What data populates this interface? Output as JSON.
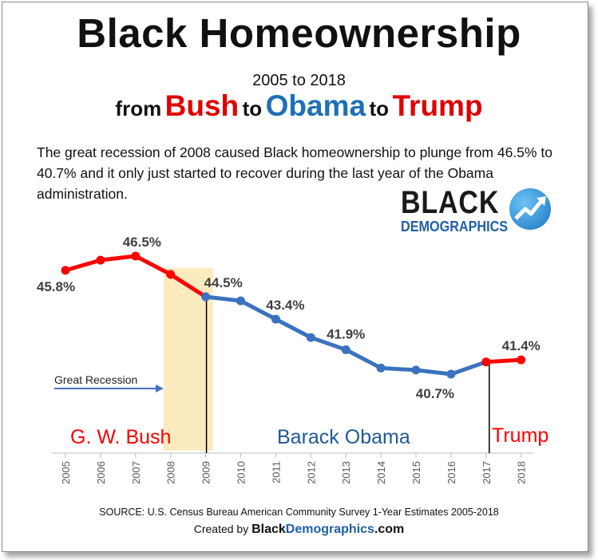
{
  "header": {
    "title": "Black Homeownership",
    "years": "2005 to 2018",
    "from": "from",
    "bush": "Bush",
    "to1": "to",
    "obama": "Obama",
    "to2": "to",
    "trump": "Trump"
  },
  "description": "The great recession of 2008 caused Black homeownership to plunge from 46.5% to 40.7% and it only just started to recover during the last year of the Obama administration.",
  "logo": {
    "line1": "BLACK",
    "line2": "DEMOGRAPHICS",
    "icon": "rising-arrow-icon"
  },
  "footer": {
    "source": "SOURCE: U.S. Census Bureau American Community  Survey 1-Year Estimates 2005-2018",
    "created_prefix": "Created by ",
    "site_a": "Black",
    "site_b": "Demographics",
    "site_c": ".com"
  },
  "colors": {
    "bush": "#ff0000",
    "obama": "#3a72c0",
    "trump": "#ff0000",
    "recession": "#fdebc0",
    "annotation_arrow": "#4472c4"
  },
  "chart_data": {
    "type": "line",
    "x": [
      2005,
      2006,
      2007,
      2008,
      2009,
      2010,
      2011,
      2012,
      2013,
      2014,
      2015,
      2016,
      2017,
      2018
    ],
    "values": [
      45.8,
      46.3,
      46.5,
      45.6,
      44.5,
      44.3,
      43.4,
      42.5,
      41.9,
      41.0,
      40.9,
      40.7,
      41.3,
      41.4
    ],
    "series": [
      {
        "name": "G. W. Bush",
        "x": [
          2005,
          2006,
          2007,
          2008,
          2009
        ],
        "values": [
          45.8,
          46.3,
          46.5,
          45.6,
          44.5
        ]
      },
      {
        "name": "Barack Obama",
        "x": [
          2009,
          2010,
          2011,
          2012,
          2013,
          2014,
          2015,
          2016,
          2017
        ],
        "values": [
          44.5,
          44.3,
          43.4,
          42.5,
          41.9,
          41.0,
          40.9,
          40.7,
          41.3
        ]
      },
      {
        "name": "Trump",
        "x": [
          2017,
          2018
        ],
        "values": [
          41.3,
          41.4
        ]
      }
    ],
    "data_labels": [
      {
        "x": 2005,
        "text": "45.8%"
      },
      {
        "x": 2007,
        "text": "46.5%"
      },
      {
        "x": 2009,
        "text": "44.5%"
      },
      {
        "x": 2011,
        "text": "43.4%"
      },
      {
        "x": 2013,
        "text": "41.9%"
      },
      {
        "x": 2016,
        "text": "40.7%"
      },
      {
        "x": 2018,
        "text": "41.4%"
      }
    ],
    "x_tick_labels": [
      "2005",
      "2006",
      "2007",
      "2008",
      "2009",
      "2010",
      "2011",
      "2012",
      "2013",
      "2014",
      "2015",
      "2016",
      "2017",
      "2018"
    ],
    "shaded_region": {
      "from": 2008,
      "to": 2009,
      "label": "Great Recession"
    },
    "presidency_labels": [
      "G. W. Bush",
      "Barack Obama",
      "Trump"
    ],
    "presidency_boundaries": [
      2009,
      2017
    ],
    "ylim": [
      39,
      47.5
    ],
    "grid": false,
    "legend": "none"
  }
}
